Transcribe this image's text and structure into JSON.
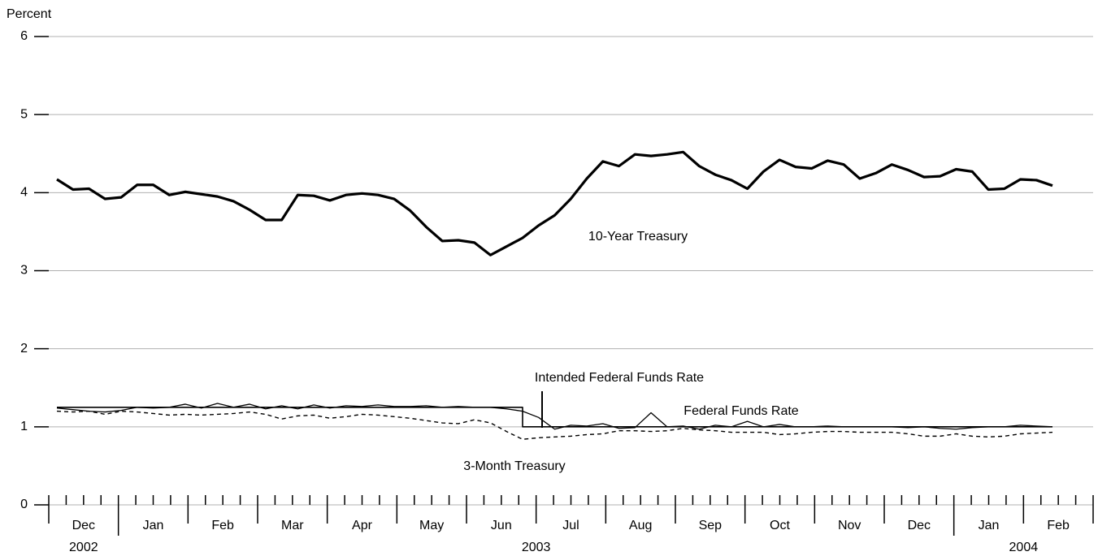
{
  "chart_data": {
    "type": "line",
    "y_label": "Percent",
    "ylim": [
      0,
      6
    ],
    "yticks": [
      0,
      1,
      2,
      3,
      4,
      5,
      6
    ],
    "grid": true,
    "x_labels": [
      "Dec",
      "Jan",
      "Feb",
      "Mar",
      "Apr",
      "May",
      "Jun",
      "Jul",
      "Aug",
      "Sep",
      "Oct",
      "Nov",
      "Dec",
      "Jan",
      "Feb"
    ],
    "year_labels": [
      "2002",
      "2003",
      "2004"
    ],
    "series": [
      {
        "name": "10-Year Treasury",
        "color": "#000000",
        "style": "thick",
        "values": [
          4.17,
          4.04,
          4.05,
          3.92,
          3.94,
          4.1,
          4.1,
          3.97,
          4.01,
          3.98,
          3.95,
          3.89,
          3.78,
          3.65,
          3.65,
          3.97,
          3.96,
          3.9,
          3.97,
          3.99,
          3.97,
          3.92,
          3.77,
          3.56,
          3.38,
          3.39,
          3.36,
          3.2,
          3.31,
          3.42,
          3.58,
          3.71,
          3.92,
          4.18,
          4.4,
          4.34,
          4.49,
          4.47,
          4.49,
          4.52,
          4.34,
          4.23,
          4.16,
          4.05,
          4.27,
          4.42,
          4.33,
          4.31,
          4.41,
          4.36,
          4.18,
          4.25,
          4.36,
          4.29,
          4.2,
          4.21,
          4.3,
          4.27,
          4.04,
          4.05,
          4.17,
          4.16,
          4.09
        ]
      },
      {
        "name": "Intended Federal Funds Rate",
        "color": "#000000",
        "style": "step",
        "values": [
          1.25,
          1.25,
          1.25,
          1.25,
          1.25,
          1.25,
          1.25,
          1.25,
          1.25,
          1.25,
          1.25,
          1.25,
          1.25,
          1.25,
          1.25,
          1.25,
          1.25,
          1.25,
          1.25,
          1.25,
          1.25,
          1.25,
          1.25,
          1.25,
          1.25,
          1.25,
          1.25,
          1.25,
          1.25,
          1.0,
          1.0,
          1.0,
          1.0,
          1.0,
          1.0,
          1.0,
          1.0,
          1.0,
          1.0,
          1.0,
          1.0,
          1.0,
          1.0,
          1.0,
          1.0,
          1.0,
          1.0,
          1.0,
          1.0,
          1.0,
          1.0,
          1.0,
          1.0,
          1.0,
          1.0,
          1.0,
          1.0,
          1.0,
          1.0,
          1.0,
          1.0,
          1.0,
          1.0
        ]
      },
      {
        "name": "Federal Funds Rate",
        "color": "#000000",
        "style": "thin",
        "values": [
          1.24,
          1.22,
          1.2,
          1.19,
          1.21,
          1.25,
          1.24,
          1.25,
          1.29,
          1.24,
          1.3,
          1.25,
          1.29,
          1.23,
          1.27,
          1.23,
          1.28,
          1.24,
          1.27,
          1.26,
          1.28,
          1.26,
          1.26,
          1.27,
          1.25,
          1.26,
          1.25,
          1.25,
          1.23,
          1.2,
          1.12,
          0.97,
          1.02,
          1.01,
          1.04,
          0.98,
          0.99,
          1.18,
          1.0,
          1.01,
          0.97,
          1.02,
          1.0,
          1.07,
          1.0,
          1.03,
          1.0,
          1.0,
          1.01,
          1.0,
          1.0,
          1.0,
          1.0,
          0.99,
          1.0,
          0.98,
          0.97,
          0.99,
          1.0,
          1.0,
          1.02,
          1.01,
          1.0
        ]
      },
      {
        "name": "3-Month Treasury",
        "color": "#000000",
        "style": "dashed",
        "values": [
          1.2,
          1.19,
          1.2,
          1.16,
          1.2,
          1.19,
          1.17,
          1.15,
          1.16,
          1.15,
          1.16,
          1.17,
          1.19,
          1.16,
          1.1,
          1.14,
          1.15,
          1.11,
          1.13,
          1.16,
          1.15,
          1.13,
          1.11,
          1.08,
          1.05,
          1.04,
          1.09,
          1.05,
          0.94,
          0.84,
          0.86,
          0.87,
          0.88,
          0.9,
          0.91,
          0.95,
          0.95,
          0.94,
          0.95,
          0.98,
          0.96,
          0.95,
          0.93,
          0.93,
          0.93,
          0.9,
          0.91,
          0.93,
          0.94,
          0.94,
          0.93,
          0.93,
          0.93,
          0.91,
          0.88,
          0.88,
          0.91,
          0.88,
          0.87,
          0.88,
          0.91,
          0.92,
          0.93
        ]
      }
    ]
  }
}
